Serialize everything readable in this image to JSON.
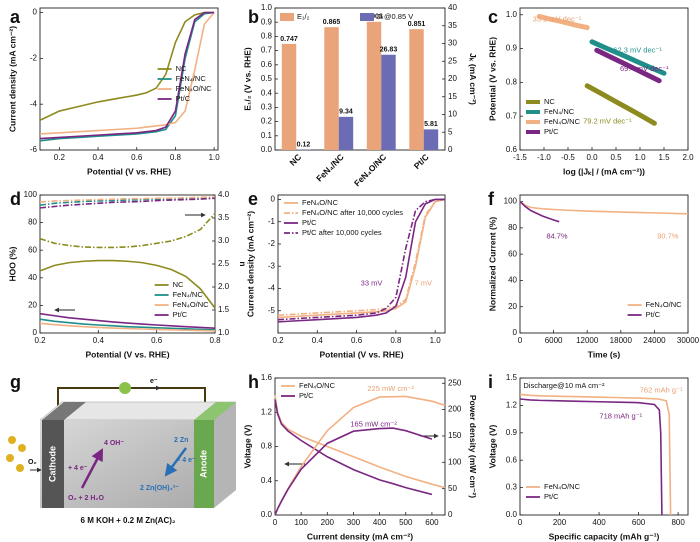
{
  "chart_data": [
    {
      "panel": "a",
      "type": "line",
      "xlabel": "Potential (V vs. RHE)",
      "ylabel": "Current density (mA cm⁻²)",
      "xlim": [
        0.1,
        1.02
      ],
      "ylim": [
        -6,
        0.2
      ],
      "xticks": [
        0.2,
        0.4,
        0.6,
        0.8,
        {
          "value": 1,
          "label": "1.0"
        }
      ],
      "yticks": [
        -6,
        -4,
        -2,
        0
      ],
      "legend": "center right",
      "x": [
        0.1,
        0.2,
        0.3,
        0.4,
        0.5,
        0.6,
        0.65,
        0.7,
        0.75,
        0.8,
        0.85,
        0.9,
        0.95,
        1.0
      ],
      "series": [
        {
          "name": "NC",
          "color": "#8d8b1f",
          "values": [
            -4.7,
            -4.3,
            -4.1,
            -3.9,
            -3.75,
            -3.6,
            -3.5,
            -3.3,
            -2.7,
            -1.3,
            -0.4,
            -0.1,
            0,
            0
          ]
        },
        {
          "name": "FeN₄/NC",
          "color": "#1f8f8a",
          "values": [
            -5.6,
            -5.5,
            -5.45,
            -5.4,
            -5.35,
            -5.3,
            -5.25,
            -5.2,
            -5.1,
            -4.5,
            -2.0,
            -0.4,
            -0.05,
            0
          ]
        },
        {
          "name": "FeN₄O/NC",
          "color": "#f2b183",
          "values": [
            -5.3,
            -5.25,
            -5.2,
            -5.15,
            -5.1,
            -5.05,
            -5.0,
            -4.95,
            -4.9,
            -4.8,
            -4.3,
            -2.5,
            -0.5,
            0
          ]
        },
        {
          "name": "Pt/C",
          "color": "#7a2783",
          "values": [
            -5.5,
            -5.45,
            -5.4,
            -5.35,
            -5.3,
            -5.25,
            -5.2,
            -5.15,
            -5.0,
            -4.3,
            -1.8,
            -0.3,
            0,
            0
          ]
        }
      ]
    },
    {
      "panel": "b",
      "type": "bar",
      "ylabel": "E₁/₂ (V vs. RHE)",
      "y2label": "Jₖ (mA cm⁻²)",
      "categories": [
        "NC",
        "FeN₄/NC",
        "FeN₄O/NC",
        "Pt/C"
      ],
      "ylim": [
        0,
        1
      ],
      "yticks": [
        {
          "value": 0,
          "label": "0.0"
        },
        0.1,
        0.2,
        0.3,
        0.4,
        0.5,
        0.6,
        0.7,
        0.8,
        0.9,
        {
          "value": 1,
          "label": "1.0"
        }
      ],
      "y2lim": [
        0,
        40
      ],
      "y2ticks": [
        0,
        5,
        10,
        15,
        20,
        25,
        30,
        35,
        40
      ],
      "legend": "upper center",
      "series": [
        {
          "name": "E₁/₂",
          "color": "#e9a47a",
          "values": [
            0.747,
            0.865,
            0.903,
            0.851
          ]
        },
        {
          "name": "Jₖ@0.85 V",
          "color": "#6c6cb4",
          "axis": "y2",
          "values": [
            0.12,
            9.34,
            26.83,
            5.81
          ]
        }
      ]
    },
    {
      "panel": "c",
      "type": "line",
      "xlabel": "log (|Jₖ| / (mA cm⁻²))",
      "ylabel": "Potential (V vs. RHE)",
      "xlim": [
        -1.5,
        2.0
      ],
      "ylim": [
        0.6,
        1.02
      ],
      "xticks": [
        {
          "value": -1.5,
          "label": "-1.5"
        },
        {
          "value": -1,
          "label": "-1.0"
        },
        {
          "value": -0.5,
          "label": "-0.5"
        },
        {
          "value": 0,
          "label": "0.0"
        },
        0.5,
        {
          "value": 1,
          "label": "1.0"
        },
        1.5,
        {
          "value": 2,
          "label": "2.0"
        }
      ],
      "yticks": [
        0.6,
        0.7,
        0.8,
        0.9,
        {
          "value": 1,
          "label": "1.0"
        }
      ],
      "legend": "lower left",
      "series": [
        {
          "name": "NC",
          "color": "#8d8b1f",
          "width": 5,
          "x": [
            -0.1,
            0.18,
            0.46,
            0.74,
            1.02,
            1.3
          ],
          "values": [
            0.79,
            0.768,
            0.746,
            0.724,
            0.702,
            0.679
          ]
        },
        {
          "name": "FeN₄/NC",
          "color": "#1f8f8a",
          "width": 5,
          "x": [
            0,
            0.3,
            0.6,
            0.9,
            1.2,
            1.5
          ],
          "values": [
            0.92,
            0.901,
            0.883,
            0.864,
            0.845,
            0.827
          ]
        },
        {
          "name": "FeN₄O/NC",
          "color": "#f2b183",
          "width": 5,
          "x": [
            -1.1,
            -0.9,
            -0.7,
            -0.5,
            -0.3,
            -0.1
          ],
          "values": [
            0.995,
            0.988,
            0.982,
            0.975,
            0.968,
            0.962
          ]
        },
        {
          "name": "Pt/C",
          "color": "#7a2783",
          "width": 5,
          "x": [
            0.1,
            0.36,
            0.62,
            0.88,
            1.14,
            1.4
          ],
          "values": [
            0.895,
            0.877,
            0.859,
            0.841,
            0.823,
            0.805
          ]
        }
      ],
      "annotations": [
        {
          "text": "33.2 mV dec⁻¹",
          "color": "#e9a070"
        },
        {
          "text": "62.3 mV dec⁻¹",
          "color": "#1f8f8a"
        },
        {
          "text": "69.4 mV dec⁻¹",
          "color": "#7a2783"
        },
        {
          "text": "79.2 mV dec⁻¹",
          "color": "#8d8b1f"
        }
      ]
    },
    {
      "panel": "d",
      "type": "line",
      "xlabel": "Potential (V vs. RHE)",
      "ylabel": "HOO (%)",
      "y2label": "n",
      "xlim": [
        0.2,
        0.8
      ],
      "ylim": [
        0,
        100
      ],
      "xticks": [
        0.2,
        0.4,
        0.6,
        0.8
      ],
      "yticks": [
        0,
        20,
        40,
        60,
        80,
        100
      ],
      "y2lim": [
        1,
        4
      ],
      "y2ticks": [
        {
          "value": 1,
          "label": "1.0"
        },
        1.5,
        {
          "value": 2,
          "label": "2.0"
        },
        2.5,
        {
          "value": 3,
          "label": "3.0"
        },
        3.5,
        {
          "value": 4,
          "label": "4.0"
        }
      ],
      "legend": "lower right",
      "x": [
        0.2,
        0.25,
        0.3,
        0.35,
        0.4,
        0.45,
        0.5,
        0.55,
        0.6,
        0.65,
        0.7,
        0.75,
        0.8
      ],
      "series": [
        {
          "name": "NC",
          "color": "#8d8b1f",
          "values": [
            45,
            49,
            51,
            52,
            52.5,
            52.5,
            52,
            51,
            49,
            46,
            41,
            32,
            18
          ]
        },
        {
          "name": "FeN₄/NC",
          "color": "#1f8f8a",
          "values": [
            10,
            8.5,
            7.5,
            6.5,
            5.8,
            5.2,
            4.6,
            4.2,
            3.8,
            3.4,
            3,
            2.6,
            2.2
          ]
        },
        {
          "name": "FeN₄O/NC",
          "color": "#f2b183",
          "values": [
            7,
            6,
            5.2,
            4.6,
            4,
            3.6,
            3.2,
            2.9,
            2.6,
            2.3,
            2.0,
            1.8,
            1.5
          ]
        },
        {
          "name": "Pt/C",
          "color": "#7a2783",
          "values": [
            14,
            12.5,
            11,
            10,
            9,
            8,
            7.2,
            6.5,
            5.8,
            5.2,
            4.6,
            4,
            3.5
          ]
        },
        {
          "color": "#8d8b1f",
          "axis": "y2",
          "style": "dashdot",
          "values": [
            3.05,
            2.95,
            2.9,
            2.87,
            2.86,
            2.86,
            2.87,
            2.9,
            2.95,
            3.0,
            3.1,
            3.25,
            3.6
          ]
        },
        {
          "color": "#1f8f8a",
          "axis": "y2",
          "style": "dashdot",
          "values": [
            3.78,
            3.82,
            3.84,
            3.86,
            3.87,
            3.88,
            3.89,
            3.9,
            3.91,
            3.91,
            3.92,
            3.93,
            3.94
          ]
        },
        {
          "color": "#f2b183",
          "axis": "y2",
          "style": "dashdot",
          "values": [
            3.85,
            3.87,
            3.88,
            3.89,
            3.9,
            3.91,
            3.92,
            3.92,
            3.93,
            3.93,
            3.94,
            3.95,
            3.96
          ]
        },
        {
          "color": "#7a2783",
          "axis": "y2",
          "style": "dashdot",
          "values": [
            3.72,
            3.75,
            3.78,
            3.8,
            3.82,
            3.84,
            3.85,
            3.86,
            3.88,
            3.89,
            3.9,
            3.91,
            3.93
          ]
        }
      ]
    },
    {
      "panel": "e",
      "type": "line",
      "xlabel": "Potential (V vs. RHE)",
      "ylabel": "Current density (mA cm⁻²)",
      "xlim": [
        0.2,
        1.05
      ],
      "ylim": [
        -6,
        0.2
      ],
      "xticks": [
        0.2,
        0.4,
        0.6,
        0.8,
        {
          "value": 1,
          "label": "1.0"
        }
      ],
      "yticks": [
        -5,
        -4,
        -3,
        -2,
        -1,
        0
      ],
      "legend": "upper left",
      "x": [
        0.2,
        0.3,
        0.4,
        0.5,
        0.6,
        0.7,
        0.75,
        0.8,
        0.85,
        0.9,
        0.95,
        1.0,
        1.05
      ],
      "series": [
        {
          "name": "FeN₄O/NC",
          "color": "#f2b183",
          "values": [
            -5.3,
            -5.25,
            -5.2,
            -5.15,
            -5.1,
            -5.05,
            -5,
            -4.9,
            -4.6,
            -3.0,
            -0.8,
            -0.1,
            0
          ]
        },
        {
          "name": "FeN₄O/NC after 10,000 cycles",
          "color": "#f2b183",
          "style": "dashdot",
          "values": [
            -5.2,
            -5.15,
            -5.1,
            -5.05,
            -5,
            -4.95,
            -4.9,
            -4.8,
            -4.5,
            -2.8,
            -0.7,
            -0.1,
            0
          ]
        },
        {
          "name": "Pt/C",
          "color": "#7a2783",
          "values": [
            -5.5,
            -5.45,
            -5.4,
            -5.35,
            -5.3,
            -5.2,
            -5.1,
            -4.8,
            -3.5,
            -1.0,
            -0.2,
            0,
            0
          ]
        },
        {
          "name": "Pt/C after 10,000 cycles",
          "color": "#7a2783",
          "style": "dashdot",
          "values": [
            -5.4,
            -5.35,
            -5.3,
            -5.25,
            -5.2,
            -5.1,
            -4.9,
            -4.4,
            -2.2,
            -0.5,
            -0.1,
            0,
            0
          ]
        }
      ],
      "annotations": [
        {
          "text": "33 mV",
          "color": "#7a2783"
        },
        {
          "text": "7 mV",
          "color": "#e9a070"
        }
      ]
    },
    {
      "panel": "f",
      "type": "line",
      "xlabel": "Time (s)",
      "ylabel": "Normalized Current (%)",
      "xlim": [
        0,
        30000
      ],
      "ylim": [
        0,
        105
      ],
      "xticks": [
        0,
        6000,
        12000,
        18000,
        24000,
        30000
      ],
      "yticks": [
        0,
        20,
        40,
        60,
        80,
        100
      ],
      "legend": "lower right",
      "series": [
        {
          "name": "FeN₄O/NC",
          "color": "#f2b183",
          "x": [
            0,
            1000,
            2000,
            4000,
            8000,
            12000,
            18000,
            24000,
            30000
          ],
          "values": [
            100,
            97,
            95.5,
            94.5,
            93.5,
            92.8,
            92,
            91.4,
            90.7
          ]
        },
        {
          "name": "Pt/C",
          "color": "#7a2783",
          "x": [
            0,
            1000,
            2000,
            3000,
            4000,
            5000,
            6000,
            7000
          ],
          "values": [
            100,
            96,
            93,
            91,
            89,
            87.5,
            86,
            84.7
          ]
        }
      ],
      "annotations": [
        {
          "text": "84.7%",
          "color": "#7a2783"
        },
        {
          "text": "90.7%",
          "color": "#e9a070"
        }
      ]
    },
    {
      "panel": "h",
      "type": "line",
      "xlabel": "Current density (mA cm⁻²)",
      "ylabel": "Voltage (V)",
      "y2label": "Power density (mW cm⁻²)",
      "xlim": [
        0,
        650
      ],
      "ylim": [
        0,
        1.6
      ],
      "xticks": [
        0,
        100,
        200,
        300,
        400,
        500,
        600
      ],
      "yticks": [
        {
          "value": 0,
          "label": "0.0"
        },
        0.4,
        0.8,
        1.2,
        1.6
      ],
      "y2lim": [
        0,
        260
      ],
      "y2ticks": [
        0,
        50,
        100,
        150,
        200,
        250
      ],
      "legend": "upper left",
      "series": [
        {
          "name": "FeN₄O/NC",
          "color": "#f2b183",
          "x": [
            0,
            10,
            25,
            50,
            100,
            200,
            300,
            400,
            500,
            600,
            650
          ],
          "values": [
            1.4,
            1.2,
            1.08,
            1.0,
            0.92,
            0.8,
            0.68,
            0.56,
            0.45,
            0.36,
            0.32
          ]
        },
        {
          "name": "Pt/C",
          "color": "#7a2783",
          "x": [
            0,
            10,
            25,
            50,
            100,
            200,
            300,
            400,
            450,
            500,
            600
          ],
          "values": [
            1.35,
            1.18,
            1.06,
            0.98,
            0.87,
            0.68,
            0.53,
            0.41,
            0.367,
            0.32,
            0.24
          ]
        },
        {
          "color": "#f2b183",
          "axis": "y2",
          "x": [
            0,
            10,
            25,
            50,
            100,
            200,
            300,
            400,
            500,
            600,
            650
          ],
          "values": [
            0,
            12,
            27,
            50,
            92,
            160,
            204,
            224,
            225,
            216,
            208
          ]
        },
        {
          "color": "#7a2783",
          "axis": "y2",
          "x": [
            0,
            10,
            25,
            50,
            100,
            200,
            300,
            400,
            450,
            500,
            600
          ],
          "values": [
            0,
            11.8,
            26.5,
            49,
            87,
            136,
            159,
            164,
            165,
            160,
            144
          ]
        }
      ],
      "annotations": [
        {
          "text": "225 mW cm⁻²",
          "color": "#e9a070"
        },
        {
          "text": "165 mW cm⁻²",
          "color": "#7a2783"
        }
      ]
    },
    {
      "panel": "i",
      "type": "line",
      "xlabel": "Specific capacity (mAh g⁻¹)",
      "ylabel": "Voltage (V)",
      "xlim": [
        0,
        850
      ],
      "ylim": [
        0,
        1.5
      ],
      "xticks": [
        0,
        200,
        400,
        600,
        800
      ],
      "yticks": [
        {
          "value": 0,
          "label": "0.0"
        },
        0.3,
        0.6,
        0.9,
        1.2,
        1.5
      ],
      "legend": "lower left",
      "series": [
        {
          "name": "FeN₄O/NC",
          "color": "#f2b183",
          "x": [
            0,
            50,
            100,
            200,
            300,
            400,
            500,
            600,
            700,
            740,
            755,
            762
          ],
          "values": [
            1.32,
            1.31,
            1.305,
            1.3,
            1.295,
            1.29,
            1.285,
            1.28,
            1.27,
            1.25,
            1.1,
            0
          ]
        },
        {
          "name": "Pt/C",
          "color": "#7a2783",
          "x": [
            0,
            50,
            100,
            200,
            300,
            400,
            500,
            600,
            680,
            705,
            712,
            718
          ],
          "values": [
            1.27,
            1.26,
            1.255,
            1.25,
            1.245,
            1.24,
            1.235,
            1.23,
            1.21,
            1.15,
            0.9,
            0
          ]
        }
      ],
      "annotations": [
        {
          "text": "Discharge@10 mA cm⁻²",
          "color": "#111111"
        },
        {
          "text": "762 mAh g⁻¹",
          "color": "#e9a070"
        },
        {
          "text": "718 mAh g⁻¹",
          "color": "#7a2783"
        }
      ]
    }
  ],
  "diagram": {
    "panel": "g",
    "electron": "e⁻",
    "gas": "O₂",
    "cathode": "Cathode",
    "anode": "Anode",
    "cathode_product": "4 OH⁻",
    "cathode_electrons": "+ 4 e⁻",
    "cathode_reactants": "O₂ + 2 H₂O",
    "anode_reactant": "2 Zn",
    "anode_electrons": "- 4 e⁻",
    "anode_product": "2 Zn(OH)₄²⁻",
    "electrolyte": "6 M KOH + 0.2 M Zn(AC)₂"
  }
}
